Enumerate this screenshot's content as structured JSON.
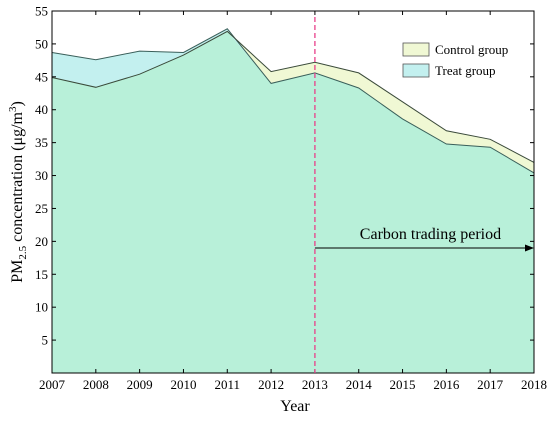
{
  "chart_data": {
    "type": "area",
    "xlabel": "Year",
    "ylabel": {
      "prefix": "PM",
      "subscript": "2.5",
      "middle": " concentration (μg/m",
      "superscript": "3",
      "suffix": ")"
    },
    "x": [
      2007,
      2008,
      2009,
      2010,
      2011,
      2012,
      2013,
      2014,
      2015,
      2016,
      2017,
      2018
    ],
    "xlim": [
      2007,
      2018
    ],
    "ylim": [
      0,
      55
    ],
    "yticks": [
      5,
      10,
      15,
      20,
      25,
      30,
      35,
      40,
      45,
      50,
      55
    ],
    "grid": false,
    "legend_position": "top-right",
    "series": [
      {
        "name": "Control group",
        "color": "#f0f8d4",
        "values": [
          44.9,
          43.4,
          45.4,
          48.3,
          51.9,
          45.8,
          47.2,
          45.6,
          41.2,
          36.8,
          35.5,
          32.0
        ]
      },
      {
        "name": "Treat group",
        "color": "#c3f0ef",
        "values": [
          48.7,
          47.6,
          48.9,
          48.7,
          52.3,
          44.0,
          45.6,
          43.3,
          38.6,
          34.8,
          34.3,
          30.4
        ]
      }
    ],
    "overlap_color": "#b8f0d9",
    "annotation": {
      "vline_x": 2013,
      "vline_color": "#e8408a",
      "label": "Carbon trading period",
      "arrow_from_x": 2013,
      "arrow_to_x": 2018,
      "arrow_y": 19
    }
  }
}
